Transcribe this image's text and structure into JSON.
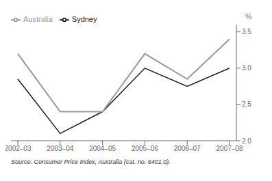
{
  "chart_data": {
    "type": "line",
    "categories": [
      "2002–03",
      "2003–04",
      "2004–05",
      "2005–06",
      "2006–07",
      "2007–08"
    ],
    "series": [
      {
        "name": "Sydney",
        "color": "#1a1a1a",
        "values": [
          2.85,
          2.1,
          2.4,
          3.0,
          2.75,
          3.0
        ]
      },
      {
        "name": "Australia",
        "color": "#999999",
        "values": [
          3.2,
          2.4,
          2.4,
          3.2,
          2.85,
          3.4
        ]
      }
    ],
    "ylabel": "%",
    "ylim": [
      2.0,
      3.6
    ],
    "yticks": [
      {
        "value": 2.0,
        "label": "2.0"
      },
      2.5,
      {
        "value": 3.0,
        "label": "3.0"
      },
      3.5
    ],
    "grid": false,
    "legend": "upper left",
    "annotations": [
      "Source: Consumer Price Index, Australia (cat. no. 6401.0)."
    ]
  }
}
